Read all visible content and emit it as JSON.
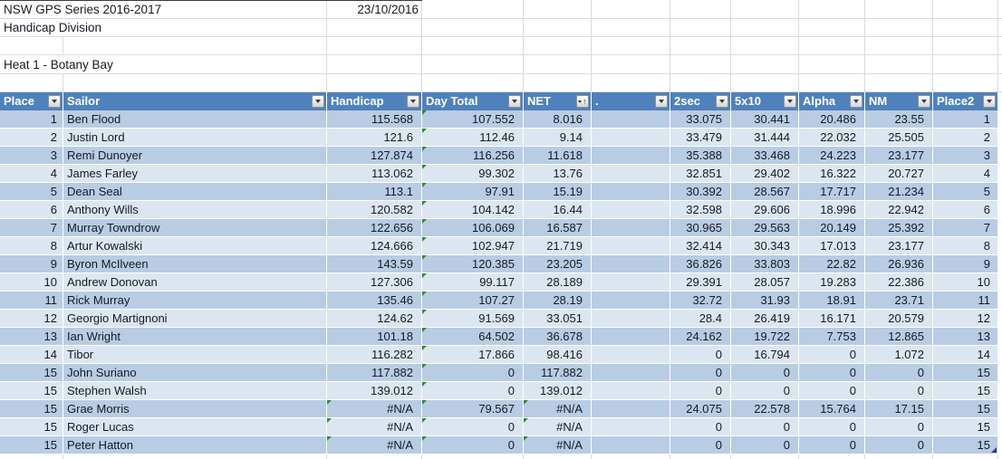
{
  "meta": {
    "title": "NSW GPS Series 2016-2017",
    "date": "23/10/2016",
    "division": "Handicap Division",
    "heat": "Heat 1 - Botany Bay"
  },
  "colors": {
    "header_bg": "#4f81bd",
    "band_dark": "#b8cce4",
    "band_light": "#dce6f1",
    "gridline": "#d5dce4",
    "error_triangle_green": "#2e8b2e",
    "corner_mark_navy": "#2b3990"
  },
  "table": {
    "columns": [
      {
        "key": "place",
        "label": "Place",
        "sorted": false
      },
      {
        "key": "sailor",
        "label": "Sailor",
        "sorted": false
      },
      {
        "key": "handicap",
        "label": "Handicap",
        "sorted": false
      },
      {
        "key": "day_total",
        "label": "Day Total",
        "sorted": false
      },
      {
        "key": "net",
        "label": "NET",
        "sorted": true
      },
      {
        "key": "dot",
        "label": ".",
        "sorted": false
      },
      {
        "key": "sec2",
        "label": "2sec",
        "sorted": false
      },
      {
        "key": "x5",
        "label": "5x10",
        "sorted": false
      },
      {
        "key": "alpha",
        "label": "Alpha",
        "sorted": false
      },
      {
        "key": "nm",
        "label": "NM",
        "sorted": false
      },
      {
        "key": "place2",
        "label": "Place2",
        "sorted": false
      }
    ],
    "rows": [
      {
        "place": "1",
        "sailor": "Ben Flood",
        "handicap": "115.568",
        "day_total": "107.552",
        "net": "8.016",
        "dot": "",
        "sec2": "33.075",
        "x5": "30.441",
        "alpha": "20.486",
        "nm": "23.55",
        "place2": "1",
        "markers": [
          "day_total"
        ]
      },
      {
        "place": "2",
        "sailor": "Justin Lord",
        "handicap": "121.6",
        "day_total": "112.46",
        "net": "9.14",
        "dot": "",
        "sec2": "33.479",
        "x5": "31.444",
        "alpha": "22.032",
        "nm": "25.505",
        "place2": "2",
        "markers": [
          "day_total"
        ]
      },
      {
        "place": "3",
        "sailor": "Remi Dunoyer",
        "handicap": "127.874",
        "day_total": "116.256",
        "net": "11.618",
        "dot": "",
        "sec2": "35.388",
        "x5": "33.468",
        "alpha": "24.223",
        "nm": "23.177",
        "place2": "3",
        "markers": [
          "day_total"
        ]
      },
      {
        "place": "4",
        "sailor": "James Farley",
        "handicap": "113.062",
        "day_total": "99.302",
        "net": "13.76",
        "dot": "",
        "sec2": "32.851",
        "x5": "29.402",
        "alpha": "16.322",
        "nm": "20.727",
        "place2": "4",
        "markers": [
          "day_total"
        ]
      },
      {
        "place": "5",
        "sailor": "Dean Seal",
        "handicap": "113.1",
        "day_total": "97.91",
        "net": "15.19",
        "dot": "",
        "sec2": "30.392",
        "x5": "28.567",
        "alpha": "17.717",
        "nm": "21.234",
        "place2": "5",
        "markers": [
          "day_total"
        ]
      },
      {
        "place": "6",
        "sailor": "Anthony Wills",
        "handicap": "120.582",
        "day_total": "104.142",
        "net": "16.44",
        "dot": "",
        "sec2": "32.598",
        "x5": "29.606",
        "alpha": "18.996",
        "nm": "22.942",
        "place2": "6",
        "markers": [
          "day_total"
        ]
      },
      {
        "place": "7",
        "sailor": "Murray Towndrow",
        "handicap": "122.656",
        "day_total": "106.069",
        "net": "16.587",
        "dot": "",
        "sec2": "30.965",
        "x5": "29.563",
        "alpha": "20.149",
        "nm": "25.392",
        "place2": "7",
        "markers": [
          "day_total"
        ]
      },
      {
        "place": "8",
        "sailor": "Artur Kowalski",
        "handicap": "124.666",
        "day_total": "102.947",
        "net": "21.719",
        "dot": "",
        "sec2": "32.414",
        "x5": "30.343",
        "alpha": "17.013",
        "nm": "23.177",
        "place2": "8",
        "markers": [
          "day_total"
        ]
      },
      {
        "place": "9",
        "sailor": "Byron McIlveen",
        "handicap": "143.59",
        "day_total": "120.385",
        "net": "23.205",
        "dot": "",
        "sec2": "36.826",
        "x5": "33.803",
        "alpha": "22.82",
        "nm": "26.936",
        "place2": "9",
        "markers": [
          "day_total"
        ]
      },
      {
        "place": "10",
        "sailor": "Andrew Donovan",
        "handicap": "127.306",
        "day_total": "99.117",
        "net": "28.189",
        "dot": "",
        "sec2": "29.391",
        "x5": "28.057",
        "alpha": "19.283",
        "nm": "22.386",
        "place2": "10",
        "markers": [
          "day_total"
        ]
      },
      {
        "place": "11",
        "sailor": "Rick Murray",
        "handicap": "135.46",
        "day_total": "107.27",
        "net": "28.19",
        "dot": "",
        "sec2": "32.72",
        "x5": "31.93",
        "alpha": "18.91",
        "nm": "23.71",
        "place2": "11",
        "markers": [
          "day_total"
        ]
      },
      {
        "place": "12",
        "sailor": "Georgio Martignoni",
        "handicap": "124.62",
        "day_total": "91.569",
        "net": "33.051",
        "dot": "",
        "sec2": "28.4",
        "x5": "26.419",
        "alpha": "16.171",
        "nm": "20.579",
        "place2": "12",
        "markers": [
          "day_total"
        ]
      },
      {
        "place": "13",
        "sailor": "Ian Wright",
        "handicap": "101.18",
        "day_total": "64.502",
        "net": "36.678",
        "dot": "",
        "sec2": "24.162",
        "x5": "19.722",
        "alpha": "7.753",
        "nm": "12.865",
        "place2": "13",
        "markers": [
          "day_total"
        ]
      },
      {
        "place": "14",
        "sailor": "Tibor",
        "handicap": "116.282",
        "day_total": "17.866",
        "net": "98.416",
        "dot": "",
        "sec2": "0",
        "x5": "16.794",
        "alpha": "0",
        "nm": "1.072",
        "place2": "14",
        "markers": [
          "day_total"
        ]
      },
      {
        "place": "15",
        "sailor": "John Suriano",
        "handicap": "117.882",
        "day_total": "0",
        "net": "117.882",
        "dot": "",
        "sec2": "0",
        "x5": "0",
        "alpha": "0",
        "nm": "0",
        "place2": "15",
        "markers": [
          "day_total"
        ]
      },
      {
        "place": "15",
        "sailor": "Stephen Walsh",
        "handicap": "139.012",
        "day_total": "0",
        "net": "139.012",
        "dot": "",
        "sec2": "0",
        "x5": "0",
        "alpha": "0",
        "nm": "0",
        "place2": "15",
        "markers": [
          "day_total"
        ]
      },
      {
        "place": "15",
        "sailor": "Grae Morris",
        "handicap": "#N/A",
        "day_total": "79.567",
        "net": "#N/A",
        "dot": "",
        "sec2": "24.075",
        "x5": "22.578",
        "alpha": "15.764",
        "nm": "17.15",
        "place2": "15",
        "markers": [
          "handicap",
          "day_total",
          "net"
        ]
      },
      {
        "place": "15",
        "sailor": "Roger Lucas",
        "handicap": "#N/A",
        "day_total": "0",
        "net": "#N/A",
        "dot": "",
        "sec2": "0",
        "x5": "0",
        "alpha": "0",
        "nm": "0",
        "place2": "15",
        "markers": [
          "handicap",
          "day_total",
          "net"
        ]
      },
      {
        "place": "15",
        "sailor": "Peter Hatton",
        "handicap": "#N/A",
        "day_total": "0",
        "net": "#N/A",
        "dot": "",
        "sec2": "0",
        "x5": "0",
        "alpha": "0",
        "nm": "0",
        "place2": "15",
        "markers": [
          "handicap",
          "day_total",
          "net"
        ],
        "corner": true
      }
    ]
  }
}
